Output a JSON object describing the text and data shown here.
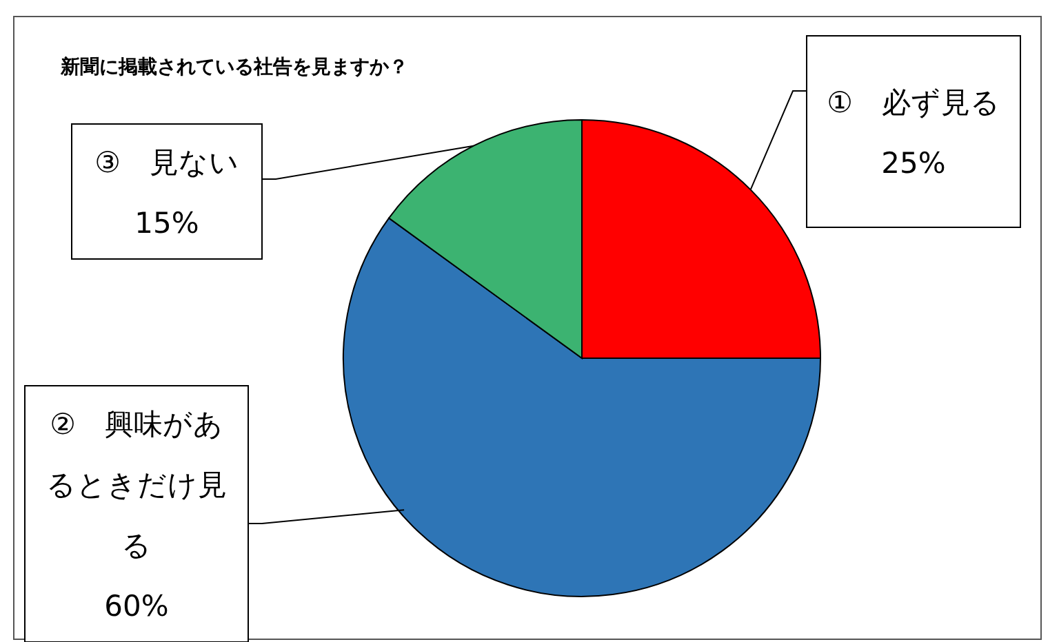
{
  "chart_data": {
    "type": "pie",
    "title": "新聞に掲載されている社告を見ますか？",
    "categories": [
      "①　必ず見る",
      "②　興味があるときだけ見る",
      "③　見ない"
    ],
    "values": [
      25,
      60,
      15
    ],
    "value_labels": [
      "25%",
      "60%",
      "15%"
    ],
    "colors": [
      "#ff0000",
      "#2e75b6",
      "#3cb371"
    ],
    "legend": false
  }
}
